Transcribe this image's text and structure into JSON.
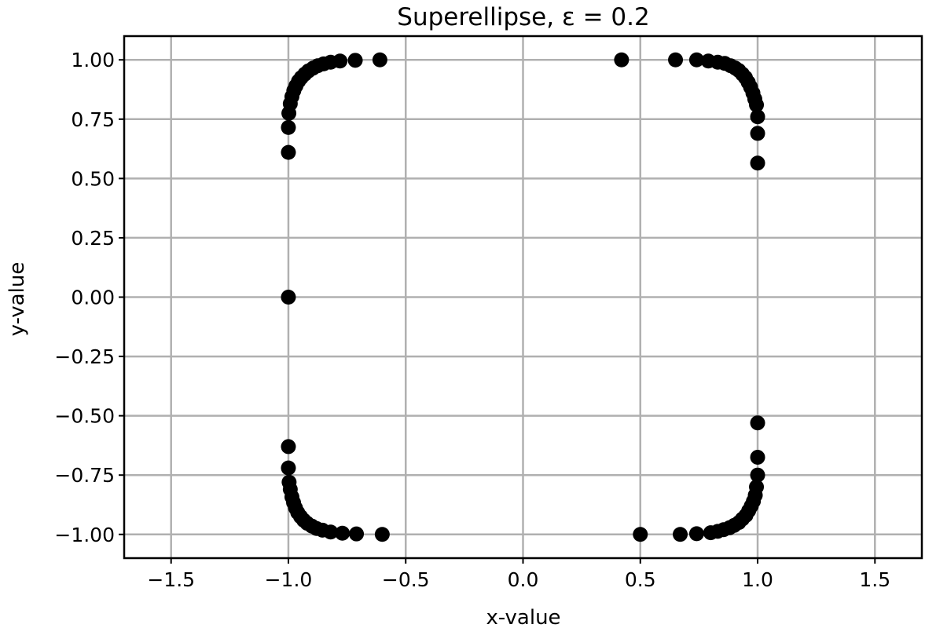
{
  "chart_data": {
    "type": "scatter",
    "title": "Superellipse, ε = 0.2",
    "xlabel": "x-value",
    "ylabel": "y-value",
    "xlim": [
      -1.7,
      1.7
    ],
    "ylim": [
      -1.1,
      1.1
    ],
    "grid": true,
    "marker_color": "#000000",
    "x_ticks": [
      {
        "value": -1.5,
        "label": "−1.5"
      },
      {
        "value": -1.0,
        "label": "−1.0"
      },
      {
        "value": -0.5,
        "label": "−0.5"
      },
      {
        "value": 0.0,
        "label": "0.0"
      },
      {
        "value": 0.5,
        "label": "0.5"
      },
      {
        "value": 1.0,
        "label": "1.0"
      },
      {
        "value": 1.5,
        "label": "1.5"
      }
    ],
    "y_ticks": [
      {
        "value": 1.0,
        "label": "1.00"
      },
      {
        "value": 0.75,
        "label": "0.75"
      },
      {
        "value": 0.5,
        "label": "0.50"
      },
      {
        "value": 0.25,
        "label": "0.25"
      },
      {
        "value": 0.0,
        "label": "0.00"
      },
      {
        "value": -0.25,
        "label": "−0.25"
      },
      {
        "value": -0.5,
        "label": "−0.50"
      },
      {
        "value": -0.75,
        "label": "−0.75"
      },
      {
        "value": -1.0,
        "label": "−1.00"
      }
    ],
    "series": [
      {
        "points": [
          [
            0.42,
            1.0
          ],
          [
            0.65,
            1.0
          ],
          [
            0.74,
            1.0
          ],
          [
            0.79,
            0.995
          ],
          [
            0.83,
            0.99
          ],
          [
            0.86,
            0.985
          ],
          [
            0.885,
            0.975
          ],
          [
            0.905,
            0.965
          ],
          [
            0.92,
            0.955
          ],
          [
            0.935,
            0.94
          ],
          [
            0.948,
            0.925
          ],
          [
            0.96,
            0.905
          ],
          [
            0.97,
            0.885
          ],
          [
            0.98,
            0.86
          ],
          [
            0.988,
            0.835
          ],
          [
            0.995,
            0.81
          ],
          [
            1.0,
            0.76
          ],
          [
            1.0,
            0.69
          ],
          [
            1.0,
            0.565
          ],
          [
            1.0,
            -0.53
          ],
          [
            1.0,
            -0.675
          ],
          [
            1.0,
            -0.75
          ],
          [
            0.995,
            -0.8
          ],
          [
            0.99,
            -0.835
          ],
          [
            0.982,
            -0.86
          ],
          [
            0.973,
            -0.88
          ],
          [
            0.962,
            -0.9
          ],
          [
            0.95,
            -0.92
          ],
          [
            0.935,
            -0.935
          ],
          [
            0.92,
            -0.95
          ],
          [
            0.9,
            -0.962
          ],
          [
            0.88,
            -0.972
          ],
          [
            0.855,
            -0.98
          ],
          [
            0.83,
            -0.987
          ],
          [
            0.8,
            -0.993
          ],
          [
            0.74,
            -0.997
          ],
          [
            0.67,
            -1.0
          ],
          [
            0.5,
            -1.0
          ],
          [
            -0.6,
            -1.0
          ],
          [
            -0.71,
            -0.998
          ],
          [
            -0.77,
            -0.995
          ],
          [
            -0.82,
            -0.99
          ],
          [
            -0.855,
            -0.982
          ],
          [
            -0.88,
            -0.975
          ],
          [
            -0.9,
            -0.965
          ],
          [
            -0.92,
            -0.953
          ],
          [
            -0.935,
            -0.94
          ],
          [
            -0.948,
            -0.925
          ],
          [
            -0.96,
            -0.908
          ],
          [
            -0.97,
            -0.888
          ],
          [
            -0.978,
            -0.866
          ],
          [
            -0.985,
            -0.842
          ],
          [
            -0.992,
            -0.81
          ],
          [
            -0.997,
            -0.78
          ],
          [
            -1.0,
            -0.72
          ],
          [
            -1.0,
            -0.63
          ],
          [
            -1.0,
            0.0
          ],
          [
            -1.0,
            0.61
          ],
          [
            -1.0,
            0.715
          ],
          [
            -0.998,
            0.775
          ],
          [
            -0.992,
            0.815
          ],
          [
            -0.985,
            0.845
          ],
          [
            -0.977,
            0.87
          ],
          [
            -0.968,
            0.89
          ],
          [
            -0.957,
            0.91
          ],
          [
            -0.945,
            0.925
          ],
          [
            -0.93,
            0.94
          ],
          [
            -0.915,
            0.953
          ],
          [
            -0.895,
            0.965
          ],
          [
            -0.875,
            0.975
          ],
          [
            -0.85,
            0.983
          ],
          [
            -0.82,
            0.99
          ],
          [
            -0.78,
            0.995
          ],
          [
            -0.715,
            0.998
          ],
          [
            -0.61,
            1.0
          ]
        ]
      }
    ]
  }
}
